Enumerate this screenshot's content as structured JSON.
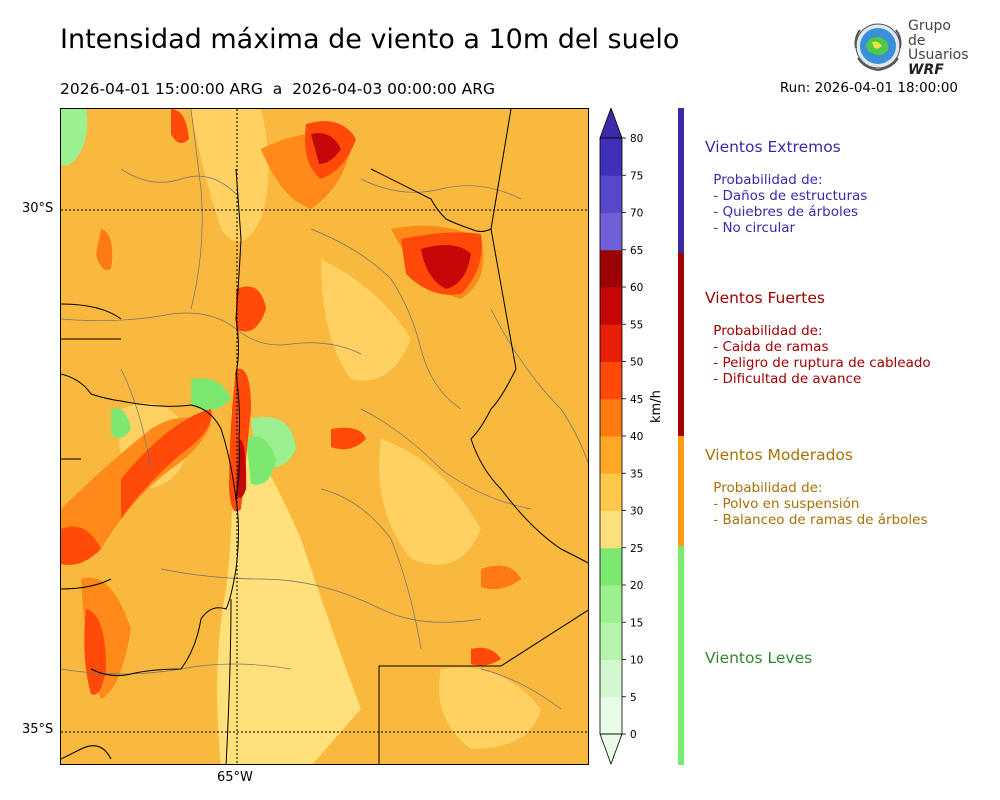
{
  "title": "Intensidad máxima de viento a 10m del suelo",
  "period": "2026-04-01 15:00:00 ARG  a  2026-04-03 00:00:00 ARG",
  "run": "Run: 2026-04-01 18:00:00",
  "logo": {
    "line1": "Grupo de",
    "line2": "Usuarios",
    "line3": "WRF"
  },
  "map": {
    "lat_labels": [
      "30°S",
      "35°S"
    ],
    "lon_labels": [
      "65°W"
    ]
  },
  "colorbar": {
    "unit": "km/h",
    "ticks": [
      0,
      5,
      10,
      15,
      20,
      25,
      30,
      35,
      40,
      45,
      50,
      55,
      60,
      65,
      70,
      75,
      80
    ],
    "colors": [
      "#e8fce8",
      "#d2f8cf",
      "#b6f4ad",
      "#9cf08f",
      "#7ce870",
      "#ffe07a",
      "#ffc84a",
      "#ffa826",
      "#ff7a12",
      "#ff4a0a",
      "#e8200a",
      "#c40808",
      "#9c0404",
      "#7060d8",
      "#5848cc",
      "#4030b8"
    ],
    "over_color": "#3c2aa8"
  },
  "categories": [
    {
      "title": "Vientos Extremos",
      "color": "#3a2aa8",
      "bar_color": "#3a2aa8",
      "lines": [
        " Probabilidad de:",
        " - Daños de estructuras",
        " - Quiebres de árboles",
        " - No circular"
      ]
    },
    {
      "title": "Vientos Fuertes",
      "color": "#a00000",
      "bar_color": "#a00000",
      "lines": [
        " Probabilidad de:",
        " - Caida de ramas",
        " - Peligro de ruptura de cableado",
        " - Dificultad de avance"
      ]
    },
    {
      "title": "Vientos Moderados",
      "color": "#a8700a",
      "bar_color": "#ff9c10",
      "lines": [
        " Probabilidad de:",
        " - Polvo en suspensión",
        " - Balanceo de ramas de árboles"
      ]
    },
    {
      "title": "Vientos Leves",
      "color": "#2e8a2e",
      "bar_color": "#78ec6e",
      "lines": []
    }
  ]
}
